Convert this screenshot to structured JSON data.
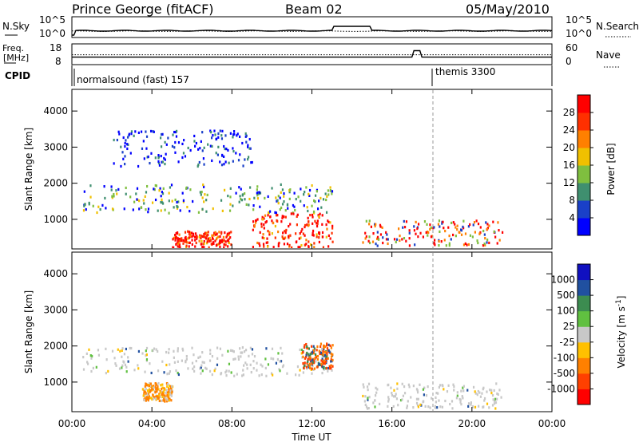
{
  "header": {
    "station": "Prince George (fitACF)",
    "beam": "Beam 02",
    "date": "05/May/2010"
  },
  "top_panels": {
    "nsky_label": "N.Sky",
    "nsearch_label": "N.Search",
    "nsky_ticks": [
      "10^5",
      "10^0"
    ],
    "nsearch_ticks": [
      "10^5",
      "10^0"
    ],
    "freq_label_1": "Freq.",
    "freq_label_2": "[MHz]",
    "freq_ticks": [
      "18",
      "8"
    ],
    "nave_label": "Nave",
    "nave_ticks": [
      "60",
      "0"
    ],
    "cpid_label": "CPID",
    "cpid_entries": [
      {
        "text": "normalsound (fast) 157",
        "start_hour": 0
      },
      {
        "text": "themis 3300",
        "start_hour": 18
      }
    ]
  },
  "time_axis": {
    "label": "Time UT",
    "ticks": [
      "00:00",
      "04:00",
      "08:00",
      "12:00",
      "16:00",
      "20:00",
      "00:00"
    ]
  },
  "colors": {
    "power": [
      "#0000ff",
      "#1a40c8",
      "#3f8f6f",
      "#7fbf3f",
      "#f0c000",
      "#ff8000",
      "#ff3000",
      "#ff0000"
    ],
    "velocity": [
      "#1010c0",
      "#2050a0",
      "#3c8c50",
      "#60c040",
      "#c8c8c8",
      "#ffc000",
      "#ff8000",
      "#ff4000",
      "#ff0000"
    ],
    "ground_scatter": "#bebebe"
  },
  "chart_data": [
    {
      "type": "heatmap",
      "title": "",
      "xlabel": "",
      "ylabel": "Slant Range [km]",
      "x_range_hours": [
        0,
        24
      ],
      "ylim": [
        180,
        4600
      ],
      "yticks": [
        1000,
        2000,
        3000,
        4000
      ],
      "colorbar": {
        "label": "Power [dB]",
        "ticks": [
          "28",
          "24",
          "20",
          "16",
          "12",
          "8",
          "4"
        ]
      },
      "features": [
        {
          "t": [
            0.5,
            13.0
          ],
          "r": [
            1200,
            2000
          ],
          "level": "low-mid"
        },
        {
          "t": [
            5.0,
            8.0
          ],
          "r": [
            250,
            700
          ],
          "level": "high"
        },
        {
          "t": [
            9.0,
            13.0
          ],
          "r": [
            250,
            1200
          ],
          "level": "high"
        },
        {
          "t": [
            14.5,
            21.5
          ],
          "r": [
            300,
            1000
          ],
          "level": "mid-high"
        },
        {
          "t": [
            2.0,
            9.0
          ],
          "r": [
            2500,
            3500
          ],
          "level": "low"
        }
      ]
    },
    {
      "type": "heatmap",
      "title": "",
      "xlabel": "Time UT",
      "ylabel": "Slant Range [km]",
      "x_range_hours": [
        0,
        24
      ],
      "ylim": [
        180,
        4600
      ],
      "yticks": [
        1000,
        2000,
        3000,
        4000
      ],
      "colorbar": {
        "label": "Velocity [m s^-1]",
        "ticks": [
          "1000",
          "500",
          "100",
          "25",
          "-25",
          "-100",
          "-500",
          "-1000"
        ]
      },
      "features": [
        {
          "t": [
            0.5,
            13.0
          ],
          "r": [
            1200,
            2000
          ],
          "level": "near-zero"
        },
        {
          "t": [
            3.5,
            5.0
          ],
          "r": [
            500,
            1000
          ],
          "level": "negative"
        },
        {
          "t": [
            11.5,
            13.0
          ],
          "r": [
            1400,
            2100
          ],
          "level": "mixed"
        },
        {
          "t": [
            14.5,
            21.5
          ],
          "r": [
            300,
            1000
          ],
          "level": "near-zero"
        }
      ]
    }
  ]
}
